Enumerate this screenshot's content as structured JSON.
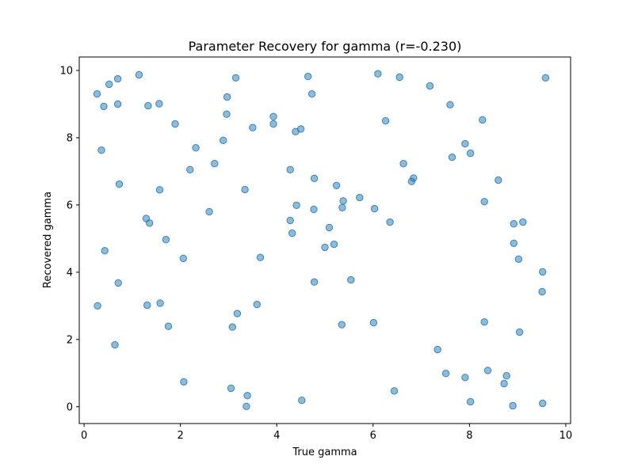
{
  "chart_data": {
    "type": "scatter",
    "title": "Parameter Recovery for gamma (r=-0.230)",
    "xlabel": "True gamma",
    "ylabel": "Recovered gamma",
    "xlim": [
      -0.1,
      10.1
    ],
    "ylim": [
      -0.5,
      10.4
    ],
    "xticks": [
      0,
      2,
      4,
      6,
      8,
      10
    ],
    "yticks": [
      0,
      2,
      4,
      6,
      8,
      10
    ],
    "grid": false,
    "marker_color": "#1f77b4",
    "marker_alpha": 0.5,
    "points": [
      [
        0.27,
        9.3
      ],
      [
        0.41,
        8.93
      ],
      [
        0.52,
        9.59
      ],
      [
        0.7,
        9.75
      ],
      [
        0.7,
        9.0
      ],
      [
        1.14,
        9.87
      ],
      [
        1.33,
        8.95
      ],
      [
        1.56,
        9.01
      ],
      [
        3.15,
        9.78
      ],
      [
        2.97,
        9.21
      ],
      [
        4.65,
        9.82
      ],
      [
        4.73,
        9.3
      ],
      [
        6.1,
        9.9
      ],
      [
        6.55,
        9.8
      ],
      [
        7.18,
        9.54
      ],
      [
        9.58,
        9.78
      ],
      [
        7.6,
        8.98
      ],
      [
        2.96,
        8.7
      ],
      [
        3.93,
        8.63
      ],
      [
        3.93,
        8.41
      ],
      [
        1.89,
        8.41
      ],
      [
        3.5,
        8.3
      ],
      [
        4.39,
        8.18
      ],
      [
        4.5,
        8.26
      ],
      [
        6.26,
        8.5
      ],
      [
        8.27,
        8.53
      ],
      [
        0.36,
        7.63
      ],
      [
        2.32,
        7.7
      ],
      [
        2.89,
        7.92
      ],
      [
        7.91,
        7.82
      ],
      [
        8.02,
        7.54
      ],
      [
        7.64,
        7.42
      ],
      [
        2.71,
        7.23
      ],
      [
        6.63,
        7.23
      ],
      [
        2.2,
        7.05
      ],
      [
        4.28,
        7.05
      ],
      [
        4.78,
        6.79
      ],
      [
        6.84,
        6.8
      ],
      [
        6.8,
        6.7
      ],
      [
        0.73,
        6.62
      ],
      [
        1.57,
        6.45
      ],
      [
        3.34,
        6.46
      ],
      [
        5.24,
        6.58
      ],
      [
        8.6,
        6.74
      ],
      [
        5.72,
        6.22
      ],
      [
        5.38,
        6.12
      ],
      [
        4.41,
        5.99
      ],
      [
        5.36,
        5.92
      ],
      [
        4.77,
        5.87
      ],
      [
        6.03,
        5.89
      ],
      [
        8.31,
        6.1
      ],
      [
        2.6,
        5.8
      ],
      [
        1.29,
        5.6
      ],
      [
        1.36,
        5.46
      ],
      [
        4.28,
        5.54
      ],
      [
        6.35,
        5.49
      ],
      [
        4.32,
        5.16
      ],
      [
        5.09,
        5.33
      ],
      [
        8.92,
        5.44
      ],
      [
        9.11,
        5.49
      ],
      [
        1.7,
        4.97
      ],
      [
        5.19,
        4.83
      ],
      [
        5.0,
        4.74
      ],
      [
        8.92,
        4.86
      ],
      [
        0.43,
        4.64
      ],
      [
        3.66,
        4.44
      ],
      [
        2.06,
        4.41
      ],
      [
        9.02,
        4.39
      ],
      [
        9.52,
        4.01
      ],
      [
        0.71,
        3.68
      ],
      [
        4.78,
        3.71
      ],
      [
        5.54,
        3.77
      ],
      [
        9.51,
        3.42
      ],
      [
        0.28,
        3.0
      ],
      [
        1.31,
        3.02
      ],
      [
        1.58,
        3.08
      ],
      [
        3.59,
        3.04
      ],
      [
        3.18,
        2.77
      ],
      [
        1.75,
        2.39
      ],
      [
        3.08,
        2.37
      ],
      [
        5.35,
        2.44
      ],
      [
        6.01,
        2.5
      ],
      [
        8.31,
        2.52
      ],
      [
        9.04,
        2.22
      ],
      [
        0.64,
        1.84
      ],
      [
        7.34,
        1.7
      ],
      [
        7.51,
        0.99
      ],
      [
        7.91,
        0.87
      ],
      [
        8.38,
        1.08
      ],
      [
        8.77,
        0.92
      ],
      [
        8.72,
        0.69
      ],
      [
        2.07,
        0.74
      ],
      [
        3.05,
        0.55
      ],
      [
        3.39,
        0.33
      ],
      [
        3.37,
        0.01
      ],
      [
        4.52,
        0.19
      ],
      [
        6.44,
        0.47
      ],
      [
        8.02,
        0.15
      ],
      [
        8.9,
        0.03
      ],
      [
        9.52,
        0.1
      ]
    ]
  }
}
